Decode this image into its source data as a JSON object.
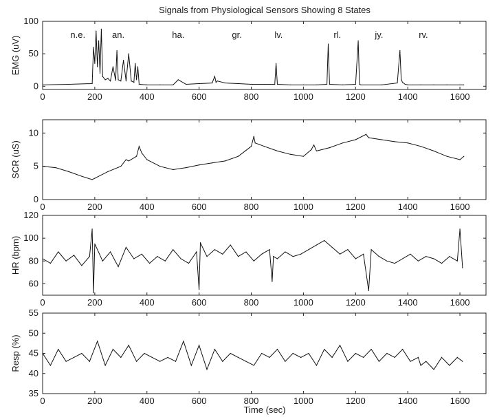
{
  "title": "Signals from Physiological Sensors Showing 8 States",
  "xlabel": "Time (sec)",
  "chart_data": [
    {
      "type": "line",
      "ylabel": "EMG (uV)",
      "xlim": [
        0,
        1700
      ],
      "ylim": [
        -5,
        100
      ],
      "xticks": [
        0,
        200,
        400,
        600,
        800,
        1000,
        1200,
        1400,
        1600
      ],
      "yticks": [
        0,
        50,
        100
      ],
      "state_labels": [
        {
          "text": "n.e.",
          "x": 135
        },
        {
          "text": "an.",
          "x": 290
        },
        {
          "text": "ha.",
          "x": 520
        },
        {
          "text": "gr.",
          "x": 745
        },
        {
          "text": "lv.",
          "x": 905
        },
        {
          "text": "rl.",
          "x": 1130
        },
        {
          "text": "jy.",
          "x": 1290
        },
        {
          "text": "rv.",
          "x": 1460
        }
      ],
      "series": [
        {
          "x": [
            0,
            100,
            190,
            195,
            200,
            205,
            210,
            215,
            220,
            225,
            230,
            240,
            250,
            260,
            270,
            280,
            285,
            290,
            300,
            310,
            320,
            330,
            340,
            350,
            355,
            360,
            365,
            370,
            400,
            450,
            500,
            520,
            550,
            600,
            650,
            660,
            665,
            670,
            700,
            750,
            800,
            850,
            890,
            895,
            900,
            950,
            1000,
            1050,
            1090,
            1095,
            1100,
            1150,
            1200,
            1210,
            1215,
            1220,
            1300,
            1360,
            1370,
            1375,
            1380,
            1390,
            1400,
            1450,
            1500,
            1550,
            1600,
            1615
          ],
          "y": [
            2,
            3,
            4,
            60,
            35,
            85,
            30,
            70,
            20,
            88,
            15,
            10,
            12,
            8,
            30,
            9,
            55,
            10,
            8,
            40,
            8,
            50,
            8,
            6,
            35,
            10,
            30,
            3,
            2,
            2,
            2,
            10,
            3,
            4,
            5,
            15,
            6,
            8,
            5,
            4,
            3,
            3,
            3,
            35,
            3,
            2,
            2,
            2,
            3,
            65,
            3,
            2,
            3,
            70,
            3,
            2,
            2,
            5,
            55,
            10,
            6,
            3,
            2,
            2,
            2,
            2,
            2,
            2
          ]
        }
      ]
    },
    {
      "type": "line",
      "ylabel": "SCR (uS)",
      "xlim": [
        0,
        1700
      ],
      "ylim": [
        0,
        12
      ],
      "xticks": [
        0,
        200,
        400,
        600,
        800,
        1000,
        1200,
        1400,
        1600
      ],
      "yticks": [
        0,
        5,
        10
      ],
      "series": [
        {
          "x": [
            0,
            50,
            100,
            150,
            190,
            200,
            250,
            300,
            320,
            330,
            360,
            370,
            380,
            400,
            450,
            500,
            550,
            600,
            650,
            700,
            750,
            800,
            810,
            815,
            830,
            850,
            900,
            950,
            1000,
            1030,
            1040,
            1050,
            1100,
            1150,
            1200,
            1240,
            1250,
            1300,
            1350,
            1400,
            1450,
            1500,
            1550,
            1600,
            1615
          ],
          "y": [
            5,
            4.8,
            4.2,
            3.5,
            3,
            3.2,
            4.2,
            5,
            6,
            5.8,
            6.5,
            8,
            7,
            6,
            5,
            4.5,
            4.8,
            5.2,
            5.5,
            5.8,
            6.5,
            8,
            9.5,
            8.5,
            8.3,
            8,
            7.3,
            6.8,
            6.5,
            7.5,
            8.2,
            7.3,
            7.8,
            8.5,
            9,
            9.8,
            9.3,
            9,
            8.7,
            8.5,
            8,
            7.3,
            6.5,
            6,
            6.5
          ]
        }
      ]
    },
    {
      "type": "line",
      "ylabel": "HR (bpm)",
      "xlim": [
        0,
        1700
      ],
      "ylim": [
        50,
        120
      ],
      "xticks": [
        0,
        200,
        400,
        600,
        800,
        1000,
        1200,
        1400,
        1600
      ],
      "yticks": [
        60,
        80,
        100,
        120
      ],
      "series": [
        {
          "x": [
            0,
            30,
            60,
            90,
            120,
            150,
            180,
            190,
            195,
            200,
            230,
            260,
            290,
            320,
            350,
            380,
            410,
            440,
            470,
            500,
            530,
            560,
            590,
            600,
            605,
            630,
            660,
            690,
            720,
            750,
            780,
            810,
            840,
            870,
            880,
            885,
            900,
            930,
            960,
            990,
            1020,
            1050,
            1080,
            1110,
            1140,
            1170,
            1200,
            1230,
            1250,
            1260,
            1290,
            1320,
            1350,
            1380,
            1410,
            1440,
            1470,
            1500,
            1530,
            1560,
            1590,
            1600,
            1610
          ],
          "y": [
            82,
            78,
            88,
            80,
            85,
            76,
            84,
            108,
            52,
            95,
            80,
            88,
            75,
            92,
            82,
            86,
            78,
            84,
            80,
            90,
            82,
            78,
            88,
            55,
            96,
            84,
            90,
            86,
            94,
            84,
            88,
            80,
            86,
            90,
            62,
            84,
            82,
            88,
            84,
            86,
            90,
            94,
            98,
            92,
            86,
            90,
            82,
            86,
            54,
            90,
            84,
            80,
            78,
            82,
            86,
            80,
            84,
            82,
            78,
            84,
            80,
            108,
            74
          ]
        }
      ]
    },
    {
      "type": "line",
      "ylabel": "Resp (%)",
      "xlim": [
        0,
        1700
      ],
      "ylim": [
        35,
        55
      ],
      "xticks": [
        0,
        200,
        400,
        600,
        800,
        1000,
        1200,
        1400,
        1600
      ],
      "yticks": [
        35,
        40,
        45,
        50,
        55
      ],
      "series": [
        {
          "x": [
            0,
            30,
            60,
            90,
            120,
            150,
            180,
            210,
            240,
            270,
            300,
            330,
            360,
            390,
            420,
            450,
            480,
            510,
            540,
            570,
            600,
            630,
            660,
            690,
            720,
            750,
            780,
            810,
            840,
            870,
            900,
            930,
            960,
            990,
            1020,
            1050,
            1080,
            1110,
            1140,
            1170,
            1200,
            1230,
            1260,
            1290,
            1320,
            1350,
            1380,
            1410,
            1440,
            1450,
            1470,
            1500,
            1530,
            1560,
            1590,
            1610
          ],
          "y": [
            45,
            42,
            46,
            43,
            44,
            45,
            43,
            48,
            42,
            46,
            44,
            47,
            43,
            45,
            44,
            43,
            44,
            43,
            48,
            42,
            47,
            41,
            46,
            43,
            45,
            44,
            43,
            42,
            45,
            44,
            46,
            43,
            45,
            44,
            45,
            42,
            46,
            44,
            47,
            43,
            45,
            44,
            46,
            43,
            45,
            44,
            46,
            43,
            44,
            42,
            43,
            41,
            44,
            42,
            44,
            43
          ]
        }
      ]
    }
  ]
}
